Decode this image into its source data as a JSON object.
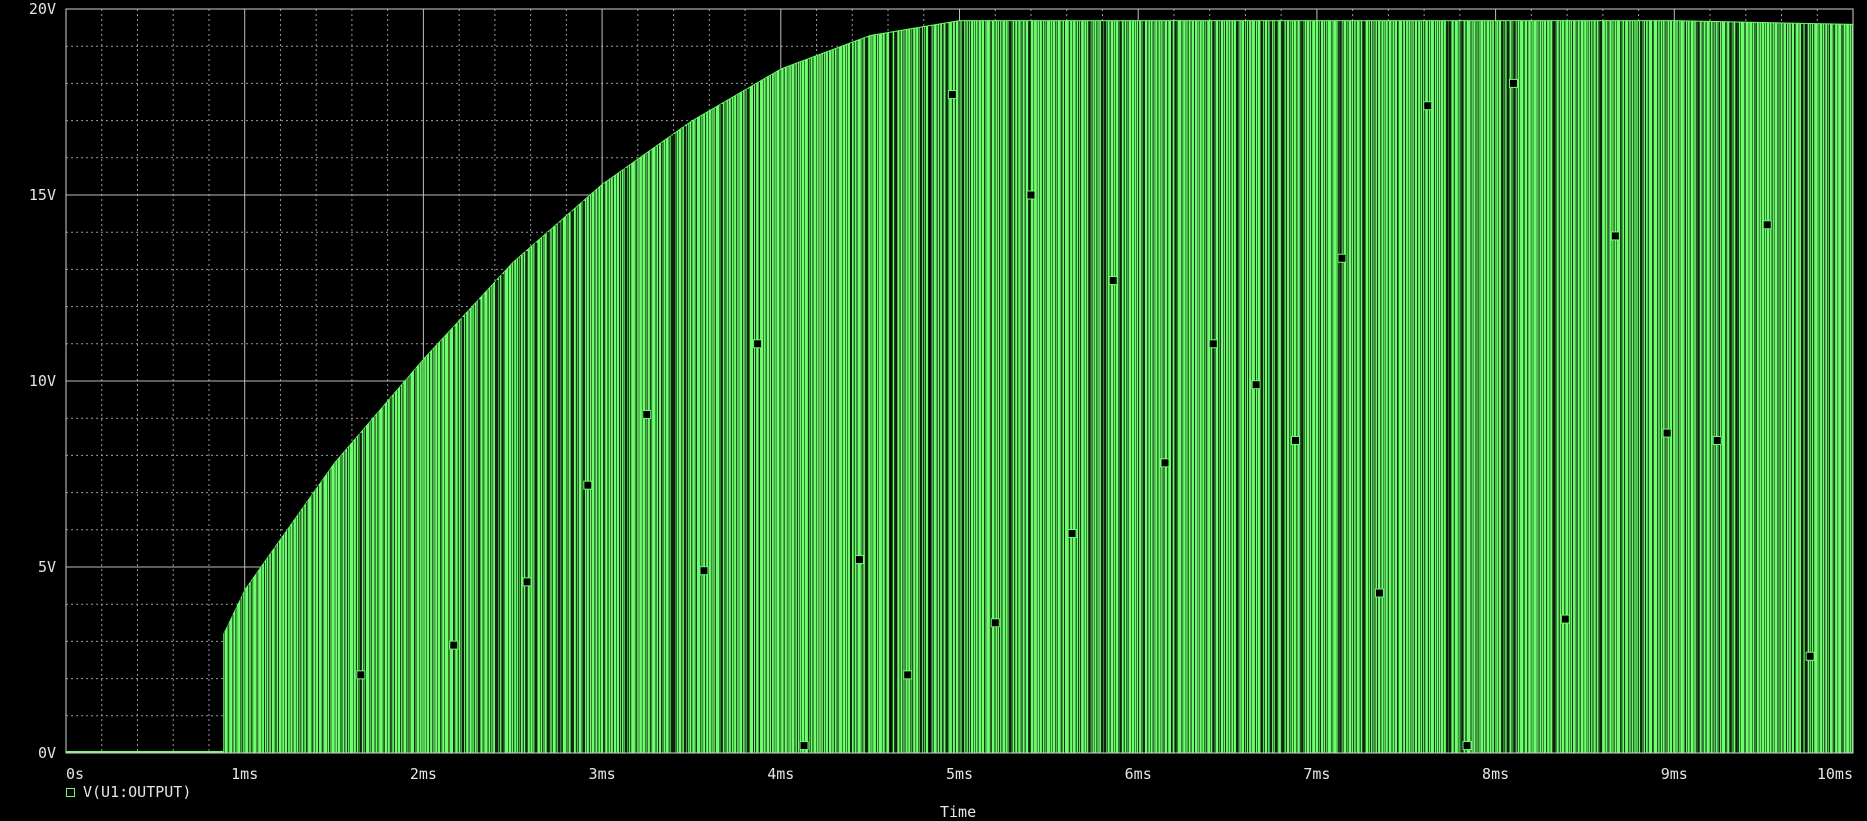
{
  "chart_data": {
    "type": "line",
    "title": "",
    "xlabel": "Time",
    "ylabel": "",
    "xlim": [
      0,
      10
    ],
    "ylim": [
      0,
      20
    ],
    "x_ticks": [
      {
        "value": 0,
        "label": "0s"
      },
      {
        "value": 1,
        "label": "1ms"
      },
      {
        "value": 2,
        "label": "2ms"
      },
      {
        "value": 3,
        "label": "3ms"
      },
      {
        "value": 4,
        "label": "4ms"
      },
      {
        "value": 5,
        "label": "5ms"
      },
      {
        "value": 6,
        "label": "6ms"
      },
      {
        "value": 7,
        "label": "7ms"
      },
      {
        "value": 8,
        "label": "8ms"
      },
      {
        "value": 9,
        "label": "9ms"
      },
      {
        "value": 10,
        "label": "10ms"
      }
    ],
    "y_ticks": [
      {
        "value": 0,
        "label": "0V"
      },
      {
        "value": 5,
        "label": "5V"
      },
      {
        "value": 10,
        "label": "10V"
      },
      {
        "value": 15,
        "label": "15V"
      },
      {
        "value": 20,
        "label": "20V"
      }
    ],
    "grid": true,
    "legend_position": "bottom-left",
    "series": [
      {
        "name": "V(U1:OUTPUT)",
        "color": "#6cff6c",
        "envelope": {
          "x": [
            0,
            0.88,
            0.88,
            1.0,
            1.5,
            2.0,
            2.5,
            3.0,
            3.5,
            4.0,
            4.5,
            5.0,
            5.5,
            6.0,
            7.0,
            8.0,
            9.0,
            10.0
          ],
          "y": [
            0,
            0,
            3.2,
            4.4,
            7.8,
            10.6,
            13.2,
            15.3,
            17.0,
            18.4,
            19.3,
            19.7,
            19.7,
            19.7,
            19.7,
            19.7,
            19.7,
            19.6
          ]
        },
        "markers": {
          "x": [
            1.65,
            2.17,
            2.58,
            2.92,
            3.25,
            3.57,
            3.87,
            4.13,
            4.44,
            4.71,
            4.96,
            5.2,
            5.4,
            5.63,
            5.86,
            6.15,
            6.42,
            6.66,
            6.88,
            7.14,
            7.35,
            7.62,
            7.84,
            8.1,
            8.39,
            8.67,
            8.96,
            9.24,
            9.52,
            9.76
          ],
          "y": [
            2.1,
            2.9,
            4.6,
            7.2,
            9.1,
            4.9,
            11.0,
            0.2,
            5.2,
            2.1,
            17.7,
            3.5,
            15.0,
            5.9,
            12.7,
            7.8,
            11.0,
            9.9,
            8.4,
            13.3,
            4.3,
            17.4,
            0.2,
            18.0,
            3.6,
            13.9,
            8.6,
            8.4,
            14.2,
            2.6
          ]
        }
      }
    ]
  }
}
